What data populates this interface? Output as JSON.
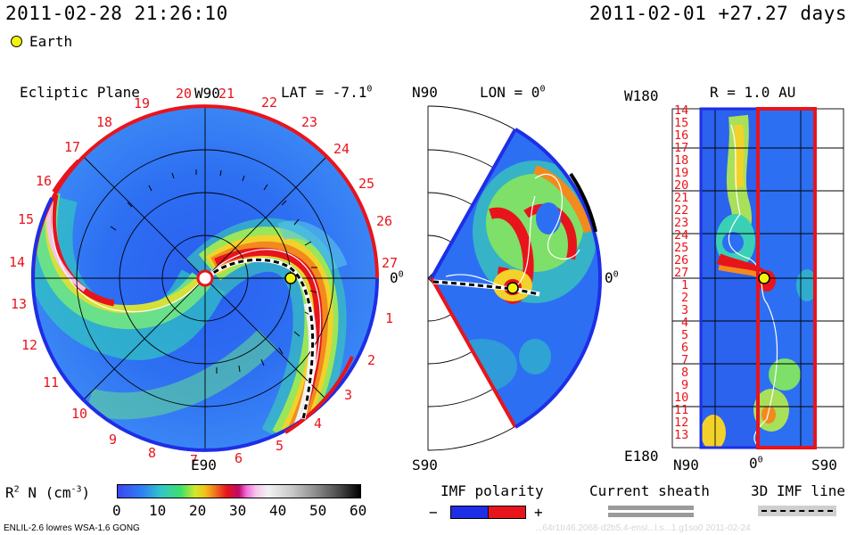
{
  "header": {
    "timestamp": "2011-02-28 21:26:10",
    "run_info": "2011-02-01 +27.27 days",
    "earth_legend": "Earth"
  },
  "colors": {
    "accent_red": "#e8141c",
    "boundary_blue": "#1e2ee6",
    "earth_yellow": "#f2f20a"
  },
  "panels": {
    "ecliptic": {
      "title": "Ecliptic Plane",
      "lat_label": "LAT = -7.1",
      "lat_deg": "0",
      "top_label": "W90",
      "bottom_label": "E90",
      "right_label": "0",
      "right_deg": "0",
      "rim_days": [
        "1",
        "2",
        "3",
        "4",
        "5",
        "6",
        "7",
        "8",
        "9",
        "10",
        "11",
        "12",
        "13",
        "14",
        "15",
        "16",
        "17",
        "18",
        "19",
        "20",
        "21",
        "22",
        "23",
        "24",
        "25",
        "26",
        "27"
      ]
    },
    "meridional": {
      "top_label": "N90",
      "lon_label": "LON = 0",
      "lon_deg": "0",
      "bottom_label": "S90",
      "right_label": "0",
      "right_deg": "0"
    },
    "sphere": {
      "title": "R = 1.0 AU",
      "top_left_label": "W180",
      "bottom_left_label": "E180",
      "x_left": "N90",
      "x_mid": "0",
      "x_mid_deg": "0",
      "x_right": "S90",
      "rows": [
        "14",
        "15",
        "16",
        "17",
        "18",
        "19",
        "20",
        "21",
        "22",
        "23",
        "24",
        "25",
        "26",
        "27",
        "1",
        "2",
        "3",
        "4",
        "5",
        "6",
        "7",
        "8",
        "9",
        "10",
        "11",
        "12",
        "13"
      ]
    }
  },
  "legend": {
    "colorbar_label": "R",
    "colorbar_sup": "2",
    "colorbar_unit": "N (cm",
    "colorbar_unit_sup": "-3",
    "colorbar_close": ")",
    "ticks": [
      "0",
      "10",
      "20",
      "30",
      "40",
      "50",
      "60"
    ],
    "imf_title": "IMF polarity",
    "imf_minus": "−",
    "imf_plus": "+",
    "sheath_title": "Current sheath",
    "imf3d_title": "3D IMF line"
  },
  "footer": {
    "model_info": "ENLIL-2.6 lowres WSA-1.6 GONG",
    "watermark": "...64r1tr46.2068-d2b5.4-ensl...l.s...1.g1so0    2011-02-24"
  }
}
